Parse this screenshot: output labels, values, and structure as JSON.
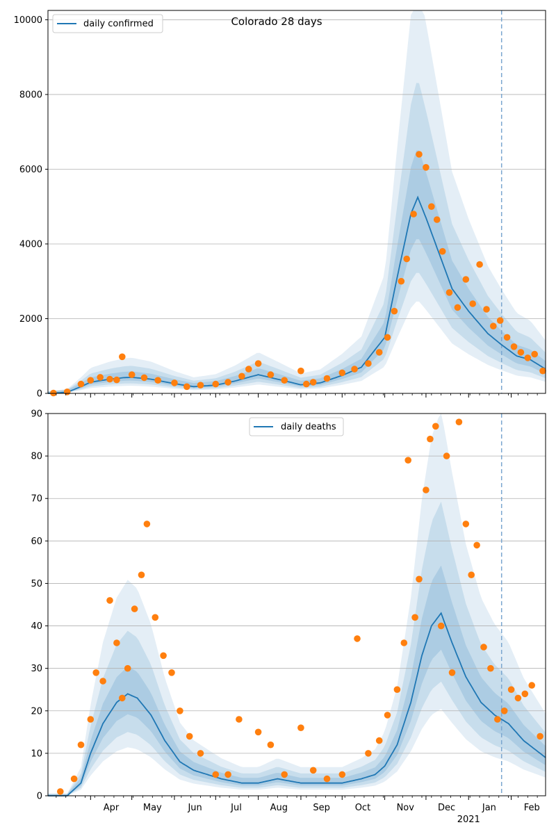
{
  "figure": {
    "title": "Colorado 28 days"
  },
  "chart_data": [
    {
      "type": "line",
      "title": "Colorado 28 days",
      "xlabel": "",
      "ylabel": "",
      "ylim": [
        0,
        10250
      ],
      "yticks": [
        0,
        2000,
        4000,
        6000,
        8000,
        10000
      ],
      "ytick_labels": [
        "0",
        "2000",
        "4000",
        "6000",
        "8000",
        "10000"
      ],
      "xlim": [
        "2020-03-01",
        "2021-02-26"
      ],
      "grid": "y",
      "legend": {
        "position": "top-left",
        "entries": [
          "daily confirmed"
        ]
      },
      "forecast_start": "2021-01-25",
      "series": [
        {
          "name": "daily confirmed",
          "kind": "model-median",
          "color": "#1f77b4",
          "x": [
            "2020-03-01",
            "2020-03-15",
            "2020-03-25",
            "2020-04-01",
            "2020-04-15",
            "2020-04-25",
            "2020-05-01",
            "2020-05-15",
            "2020-06-01",
            "2020-06-15",
            "2020-07-01",
            "2020-07-15",
            "2020-07-25",
            "2020-08-01",
            "2020-08-15",
            "2020-09-01",
            "2020-09-15",
            "2020-10-01",
            "2020-10-15",
            "2020-11-01",
            "2020-11-10",
            "2020-11-20",
            "2020-11-25",
            "2020-12-01",
            "2020-12-10",
            "2020-12-20",
            "2021-01-01",
            "2021-01-15",
            "2021-01-25",
            "2021-02-05",
            "2021-02-15",
            "2021-02-26"
          ],
          "values": [
            0,
            30,
            180,
            300,
            380,
            420,
            430,
            380,
            260,
            180,
            220,
            330,
            430,
            500,
            380,
            230,
            280,
            480,
            700,
            1500,
            3100,
            4800,
            5250,
            4700,
            3800,
            2800,
            2200,
            1600,
            1300,
            1000,
            900,
            650
          ]
        },
        {
          "name": "",
          "kind": "observed",
          "color": "#ff7f0e",
          "x": [
            "2020-03-05",
            "2020-03-15",
            "2020-03-25",
            "2020-04-01",
            "2020-04-08",
            "2020-04-15",
            "2020-04-20",
            "2020-04-24",
            "2020-05-01",
            "2020-05-10",
            "2020-05-20",
            "2020-06-01",
            "2020-06-10",
            "2020-06-20",
            "2020-07-01",
            "2020-07-10",
            "2020-07-20",
            "2020-07-25",
            "2020-08-01",
            "2020-08-10",
            "2020-08-20",
            "2020-09-01",
            "2020-09-05",
            "2020-09-10",
            "2020-09-20",
            "2020-10-01",
            "2020-10-10",
            "2020-10-20",
            "2020-10-28",
            "2020-11-03",
            "2020-11-08",
            "2020-11-13",
            "2020-11-17",
            "2020-11-22",
            "2020-11-26",
            "2020-12-01",
            "2020-12-05",
            "2020-12-09",
            "2020-12-13",
            "2020-12-18",
            "2020-12-24",
            "2020-12-30",
            "2021-01-04",
            "2021-01-09",
            "2021-01-14",
            "2021-01-19",
            "2021-01-24",
            "2021-01-29",
            "2021-02-03",
            "2021-02-08",
            "2021-02-13",
            "2021-02-18",
            "2021-02-24"
          ],
          "values": [
            10,
            40,
            250,
            350,
            430,
            380,
            360,
            980,
            500,
            420,
            350,
            280,
            180,
            220,
            250,
            300,
            460,
            650,
            800,
            500,
            350,
            600,
            250,
            300,
            400,
            550,
            650,
            800,
            1100,
            1500,
            2200,
            3000,
            3600,
            4800,
            6400,
            6050,
            5000,
            4650,
            3800,
            2700,
            2300,
            3050,
            2400,
            3450,
            2250,
            1800,
            1950,
            1500,
            1250,
            1100,
            950,
            1050,
            600
          ]
        }
      ]
    },
    {
      "type": "line",
      "title": "",
      "xlabel": "",
      "ylabel": "",
      "ylim": [
        0,
        90
      ],
      "yticks": [
        0,
        10,
        20,
        30,
        40,
        50,
        60,
        70,
        80,
        90
      ],
      "ytick_labels": [
        "0",
        "10",
        "20",
        "30",
        "40",
        "50",
        "60",
        "70",
        "80",
        "90"
      ],
      "xlim": [
        "2020-03-01",
        "2021-02-26"
      ],
      "xticks": [
        "2020-04-01",
        "2020-05-01",
        "2020-06-01",
        "2020-07-01",
        "2020-08-01",
        "2020-09-01",
        "2020-10-01",
        "2020-11-01",
        "2020-12-01",
        "2021-01-01",
        "2021-02-01"
      ],
      "xtick_labels": [
        "Apr",
        "May",
        "Jun",
        "Jul",
        "Aug",
        "Sep",
        "Oct",
        "Nov",
        "Dec",
        "Jan",
        "Feb"
      ],
      "xtick_year_label": "2021",
      "grid": "y",
      "legend": {
        "position": "top-center",
        "entries": [
          "daily deaths"
        ]
      },
      "forecast_start": "2021-01-25",
      "series": [
        {
          "name": "daily deaths",
          "kind": "model-median",
          "color": "#1f77b4",
          "x": [
            "2020-03-01",
            "2020-03-15",
            "2020-03-25",
            "2020-04-01",
            "2020-04-10",
            "2020-04-20",
            "2020-04-28",
            "2020-05-05",
            "2020-05-15",
            "2020-05-25",
            "2020-06-05",
            "2020-06-15",
            "2020-06-25",
            "2020-07-05",
            "2020-07-20",
            "2020-08-01",
            "2020-08-15",
            "2020-09-01",
            "2020-09-15",
            "2020-10-01",
            "2020-10-15",
            "2020-10-25",
            "2020-11-01",
            "2020-11-10",
            "2020-11-20",
            "2020-11-28",
            "2020-12-05",
            "2020-12-12",
            "2020-12-20",
            "2020-12-30",
            "2021-01-10",
            "2021-01-20",
            "2021-01-30",
            "2021-02-10",
            "2021-02-26"
          ],
          "values": [
            0,
            0,
            3,
            10,
            17,
            22,
            24,
            23,
            19,
            13,
            8,
            6,
            5,
            4,
            3,
            3,
            4,
            3,
            3,
            3,
            4,
            5,
            7,
            12,
            22,
            33,
            40,
            43,
            36,
            28,
            22,
            19,
            17,
            13,
            9
          ]
        },
        {
          "name": "",
          "kind": "observed",
          "color": "#ff7f0e",
          "x": [
            "2020-03-10",
            "2020-03-20",
            "2020-03-25",
            "2020-04-01",
            "2020-04-05",
            "2020-04-10",
            "2020-04-15",
            "2020-04-20",
            "2020-04-24",
            "2020-04-28",
            "2020-05-03",
            "2020-05-08",
            "2020-05-12",
            "2020-05-18",
            "2020-05-24",
            "2020-05-30",
            "2020-06-05",
            "2020-06-12",
            "2020-06-20",
            "2020-07-01",
            "2020-07-10",
            "2020-07-18",
            "2020-08-01",
            "2020-08-10",
            "2020-08-20",
            "2020-09-01",
            "2020-09-10",
            "2020-09-20",
            "2020-10-01",
            "2020-10-12",
            "2020-10-20",
            "2020-10-28",
            "2020-11-03",
            "2020-11-10",
            "2020-11-15",
            "2020-11-18",
            "2020-11-23",
            "2020-11-26",
            "2020-12-01",
            "2020-12-04",
            "2020-12-08",
            "2020-12-12",
            "2020-12-16",
            "2020-12-20",
            "2020-12-25",
            "2020-12-30",
            "2021-01-03",
            "2021-01-07",
            "2021-01-12",
            "2021-01-17",
            "2021-01-22",
            "2021-01-27",
            "2021-02-01",
            "2021-02-06",
            "2021-02-11",
            "2021-02-16",
            "2021-02-22"
          ],
          "values": [
            1,
            4,
            12,
            18,
            29,
            27,
            46,
            36,
            23,
            30,
            44,
            52,
            64,
            42,
            33,
            29,
            20,
            14,
            10,
            5,
            5,
            18,
            15,
            12,
            5,
            16,
            6,
            4,
            5,
            37,
            10,
            13,
            19,
            25,
            36,
            79,
            42,
            51,
            72,
            84,
            87,
            40,
            80,
            29,
            88,
            64,
            52,
            59,
            35,
            30,
            18,
            20,
            25,
            23,
            24,
            26,
            14
          ]
        }
      ]
    }
  ]
}
